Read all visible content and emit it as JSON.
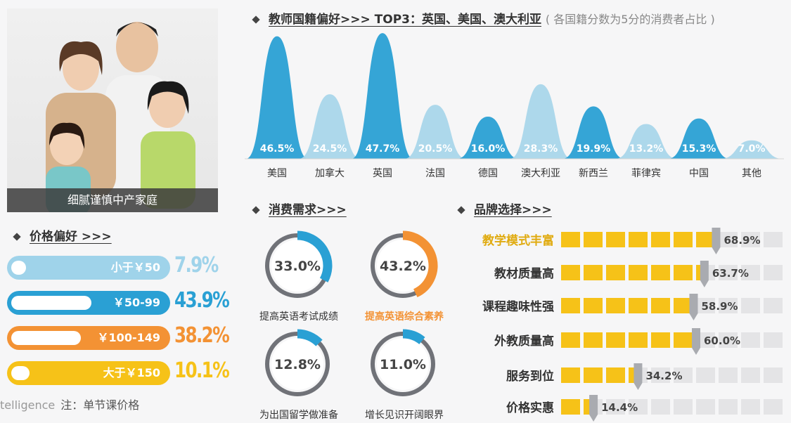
{
  "photo_caption": "细腻谨慎中产家庭",
  "price": {
    "title": "价格偏好 >>>",
    "note": "注：单节课价格",
    "watermark": "telligence",
    "rows": [
      {
        "label": "小于￥50",
        "pct": "7.9%",
        "value": 7.9,
        "color": "#9fd3ea"
      },
      {
        "label": "￥50-99",
        "pct": "43.9%",
        "value": 43.9,
        "color": "#2aa0d4"
      },
      {
        "label": "￥100-149",
        "pct": "38.2%",
        "value": 38.2,
        "color": "#f39234"
      },
      {
        "label": "大于￥150",
        "pct": "10.1%",
        "value": 10.1,
        "color": "#f6c218"
      }
    ]
  },
  "teacher": {
    "title": "教师国籍偏好>>> TOP3：英国、美国、澳大利亚",
    "subtitle": "( 各国籍分数为5分的消费者占比 )"
  },
  "demand": {
    "title": "消费需求>>>",
    "items": [
      {
        "label": "提高英语考试成绩",
        "pct": "33.0%",
        "value": 33.0,
        "color": "#2aa0d4",
        "label_color": "#333"
      },
      {
        "label": "提高英语综合素养",
        "pct": "43.2%",
        "value": 43.2,
        "color": "#f39234",
        "label_color": "#f39234"
      },
      {
        "label": "为出国留学做准备",
        "pct": "12.8%",
        "value": 12.8,
        "color": "#2aa0d4",
        "label_color": "#333"
      },
      {
        "label": "增长见识开阔眼界",
        "pct": "11.0%",
        "value": 11.0,
        "color": "#2aa0d4",
        "label_color": "#333"
      }
    ]
  },
  "brand": {
    "title": "品牌选择>>>",
    "items": [
      {
        "label": "教学模式丰富",
        "pct": "68.9%",
        "value": 68.9,
        "highlight": true
      },
      {
        "label": "教材质量高",
        "pct": "63.7%",
        "value": 63.7,
        "highlight": false
      },
      {
        "label": "课程趣味性强",
        "pct": "58.9%",
        "value": 58.9,
        "highlight": false
      },
      {
        "label": "外教质量高",
        "pct": "60.0%",
        "value": 60.0,
        "highlight": false
      },
      {
        "label": "服务到位",
        "pct": "34.2%",
        "value": 34.2,
        "highlight": false
      },
      {
        "label": "价格实惠",
        "pct": "14.4%",
        "value": 14.4,
        "highlight": false
      }
    ]
  },
  "chart_data": [
    {
      "type": "area",
      "title": "教师国籍偏好>>> TOP3：英国、美国、澳大利亚",
      "subtitle": "( 各国籍分数为5分的消费者占比 )",
      "categories": [
        "美国",
        "加拿大",
        "英国",
        "法国",
        "德国",
        "澳大利亚",
        "新西兰",
        "菲律宾",
        "中国",
        "其他"
      ],
      "values": [
        46.5,
        24.5,
        47.7,
        20.5,
        16.0,
        28.3,
        19.9,
        13.2,
        15.3,
        7.0
      ],
      "labels": [
        "46.5%",
        "24.5%",
        "47.7%",
        "20.5%",
        "16.0%",
        "28.3%",
        "19.9%",
        "13.2%",
        "15.3%",
        "7.0%"
      ],
      "colors": [
        "#2aa0d4",
        "#a9d6ea",
        "#2aa0d4",
        "#a9d6ea",
        "#2aa0d4",
        "#a9d6ea",
        "#2aa0d4",
        "#a9d6ea",
        "#2aa0d4",
        "#a9d6ea"
      ],
      "ylim": [
        0,
        48
      ]
    },
    {
      "type": "bar",
      "title": "价格偏好 >>>",
      "categories": [
        "小于￥50",
        "￥50-99",
        "￥100-149",
        "大于￥150"
      ],
      "values": [
        7.9,
        43.9,
        38.2,
        10.1
      ],
      "ylim": [
        0,
        50
      ]
    },
    {
      "type": "pie",
      "title": "消费需求>>>",
      "categories": [
        "提高英语考试成绩",
        "提高英语综合素养",
        "为出国留学做准备",
        "增长见识开阔眼界"
      ],
      "values": [
        33.0,
        43.2,
        12.8,
        11.0
      ]
    },
    {
      "type": "bar",
      "title": "品牌选择>>>",
      "categories": [
        "教学模式丰富",
        "教材质量高",
        "课程趣味性强",
        "外教质量高",
        "服务到位",
        "价格实惠"
      ],
      "values": [
        68.9,
        63.7,
        58.9,
        60.0,
        34.2,
        14.4
      ],
      "ylim": [
        0,
        100
      ]
    }
  ]
}
